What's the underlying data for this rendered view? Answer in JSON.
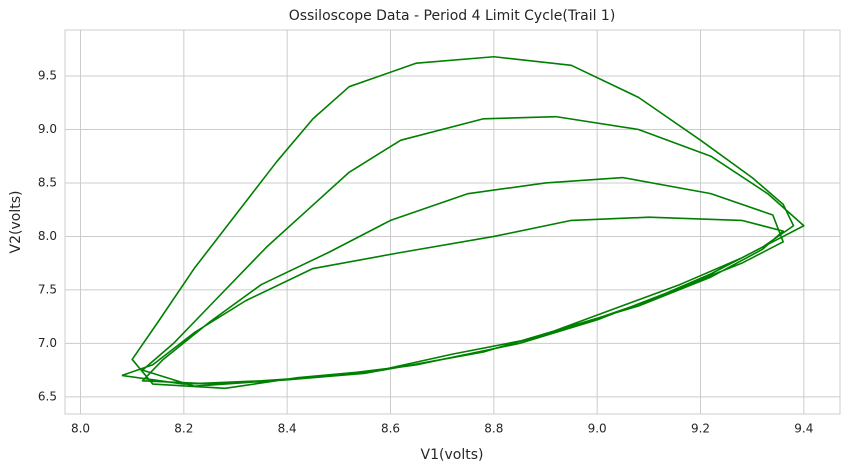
{
  "chart_data": {
    "type": "line",
    "title": "Ossiloscope Data - Period 4 Limit Cycle(Trail 1)",
    "x_label": "V1(volts)",
    "y_label": "V2(volts)",
    "color": "#008000",
    "grid": true,
    "xlim": [
      7.97,
      9.47
    ],
    "ylim": [
      6.34,
      9.93
    ],
    "xticks": [
      {
        "value": 8,
        "label": "8.0"
      },
      8.2,
      8.4,
      8.6,
      8.8,
      {
        "value": 9,
        "label": "9.0"
      },
      9.2,
      9.4
    ],
    "yticks": [
      6.5,
      {
        "value": 7,
        "label": "7.0"
      },
      7.5,
      {
        "value": 8,
        "label": "8.0"
      },
      8.5,
      {
        "value": 9,
        "label": "9.0"
      },
      9.5
    ],
    "x": [
      8.08,
      8.2,
      8.35,
      8.5,
      8.65,
      8.8,
      8.95,
      9.1,
      9.22,
      9.32,
      9.38,
      9.36,
      9.3,
      9.2,
      9.08,
      8.95,
      8.8,
      8.65,
      8.52,
      8.45,
      8.38,
      8.3,
      8.22,
      8.15,
      8.1,
      8.14,
      8.28,
      8.42,
      8.58,
      8.72,
      8.88,
      9.02,
      9.16,
      9.28,
      9.36,
      9.4,
      9.33,
      9.22,
      9.08,
      8.92,
      8.78,
      8.62,
      8.52,
      8.44,
      8.36,
      8.26,
      8.18,
      8.12,
      8.22,
      8.4,
      8.55,
      8.7,
      8.85,
      9.0,
      9.15,
      9.28,
      9.36,
      9.34,
      9.22,
      9.05,
      8.9,
      8.75,
      8.6,
      8.48,
      8.35,
      8.25,
      8.16,
      8.12,
      8.26,
      8.45,
      8.62,
      8.78,
      8.92,
      9.08,
      9.22,
      9.32,
      9.36,
      9.28,
      9.1,
      8.95,
      8.8,
      8.62,
      8.45,
      8.32,
      8.22,
      8.14,
      8.08
    ],
    "values": [
      6.7,
      6.62,
      6.65,
      6.7,
      6.8,
      6.95,
      7.15,
      7.4,
      7.65,
      7.9,
      8.1,
      8.3,
      8.55,
      8.9,
      9.3,
      9.6,
      9.68,
      9.62,
      9.4,
      9.1,
      8.7,
      8.2,
      7.7,
      7.2,
      6.85,
      6.62,
      6.58,
      6.68,
      6.75,
      6.9,
      7.05,
      7.3,
      7.55,
      7.8,
      8.0,
      8.1,
      8.4,
      8.75,
      9.0,
      9.12,
      9.1,
      8.9,
      8.6,
      8.25,
      7.9,
      7.4,
      7.0,
      6.75,
      6.6,
      6.66,
      6.72,
      6.85,
      7.0,
      7.22,
      7.5,
      7.75,
      7.95,
      8.2,
      8.4,
      8.55,
      8.5,
      8.4,
      8.15,
      7.85,
      7.55,
      7.2,
      6.85,
      6.65,
      6.62,
      6.68,
      6.78,
      6.92,
      7.12,
      7.35,
      7.62,
      7.88,
      8.05,
      8.15,
      8.18,
      8.15,
      8.0,
      7.85,
      7.7,
      7.4,
      7.1,
      6.8,
      6.7
    ]
  }
}
